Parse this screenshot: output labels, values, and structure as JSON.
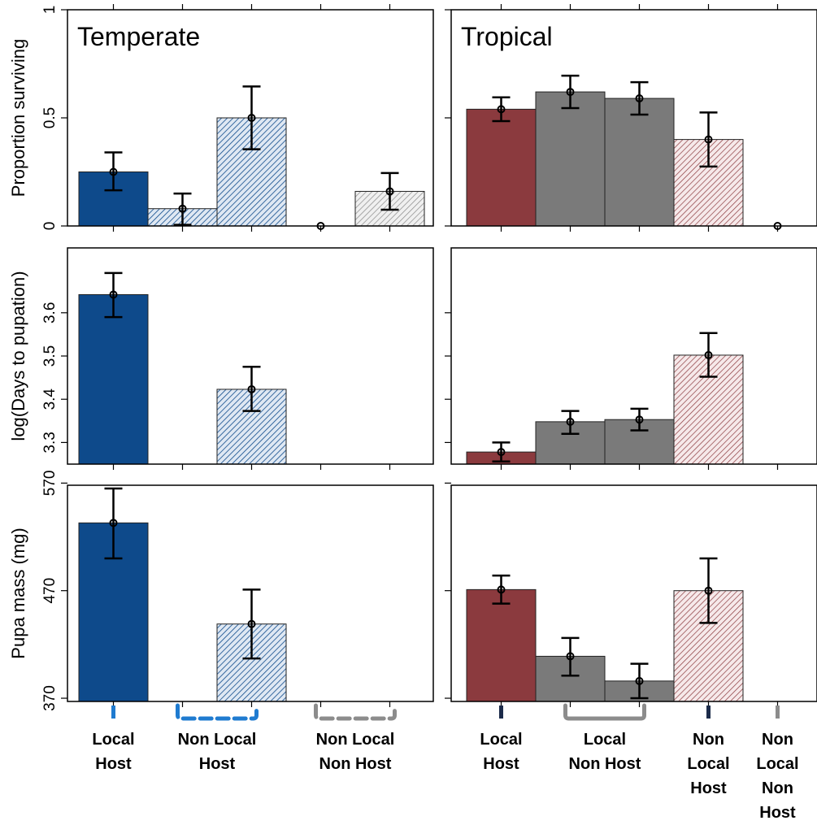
{
  "chart_data": [
    {
      "panel": "temperate-survival",
      "type": "bar",
      "title": "Temperate",
      "ylabel": "Proportion surviving",
      "ylim": [
        0,
        1
      ],
      "yticks": [
        "0",
        "0.5",
        "1"
      ],
      "x": [
        1,
        2,
        3,
        4,
        5
      ],
      "values": [
        0.25,
        0.08,
        0.5,
        0.0,
        0.16
      ],
      "ci_low": [
        0.165,
        0.005,
        0.355,
        0.0,
        0.075
      ],
      "ci_high": [
        0.34,
        0.15,
        0.645,
        0.0,
        0.245
      ],
      "fills": [
        "solid",
        "hatched",
        "hatched",
        "none",
        "hatched"
      ],
      "colors": [
        "#0e4a8b",
        "#0e4a8b",
        "#0e4a8b",
        "#888888",
        "#888888"
      ]
    },
    {
      "panel": "tropical-survival",
      "type": "bar",
      "title": "Tropical",
      "ylabel": "",
      "ylim": [
        0,
        1
      ],
      "x": [
        1,
        2,
        3,
        4,
        5
      ],
      "values": [
        0.54,
        0.62,
        0.59,
        0.4,
        0.0
      ],
      "ci_low": [
        0.485,
        0.545,
        0.515,
        0.275,
        0.0
      ],
      "ci_high": [
        0.595,
        0.695,
        0.665,
        0.525,
        0.0
      ],
      "fills": [
        "solid",
        "solid",
        "solid",
        "hatched",
        "none"
      ],
      "colors": [
        "#8b3a3e",
        "#7a7a7a",
        "#7a7a7a",
        "#8b3a3e",
        "#888888"
      ]
    },
    {
      "panel": "temperate-days",
      "type": "bar",
      "title": "",
      "ylabel": "log(Days to pupation)",
      "ylim": [
        3.25,
        3.75
      ],
      "yticks": [
        "3.3",
        "3.4",
        "3.5",
        "3.6"
      ],
      "x": [
        1,
        3
      ],
      "values": [
        3.642,
        3.423
      ],
      "ci_low": [
        3.59,
        3.373
      ],
      "ci_high": [
        3.692,
        3.475
      ],
      "fills": [
        "solid",
        "hatched"
      ],
      "colors": [
        "#0e4a8b",
        "#0e4a8b"
      ]
    },
    {
      "panel": "tropical-days",
      "type": "bar",
      "title": "",
      "ylabel": "",
      "ylim": [
        3.25,
        3.75
      ],
      "x": [
        1,
        2,
        3,
        4
      ],
      "values": [
        3.278,
        3.348,
        3.353,
        3.502
      ],
      "ci_low": [
        3.256,
        3.32,
        3.328,
        3.452
      ],
      "ci_high": [
        3.3,
        3.373,
        3.378,
        3.553
      ],
      "fills": [
        "solid",
        "solid",
        "solid",
        "hatched"
      ],
      "colors": [
        "#8b3a3e",
        "#7a7a7a",
        "#7a7a7a",
        "#8b3a3e"
      ]
    },
    {
      "panel": "temperate-mass",
      "type": "bar",
      "title": "",
      "ylabel": "Pupa mass (mg)",
      "ylim": [
        367,
        568
      ],
      "yticks": [
        "370",
        "470",
        "570"
      ],
      "x": [
        1,
        3
      ],
      "values": [
        533,
        439
      ],
      "ci_low": [
        500,
        407
      ],
      "ci_high": [
        565,
        471
      ],
      "fills": [
        "solid",
        "hatched"
      ],
      "colors": [
        "#0e4a8b",
        "#0e4a8b"
      ]
    },
    {
      "panel": "tropical-mass",
      "type": "bar",
      "title": "",
      "ylabel": "",
      "ylim": [
        367,
        568
      ],
      "x": [
        1,
        2,
        3,
        4
      ],
      "values": [
        471,
        409,
        386,
        470
      ],
      "ci_low": [
        458,
        391,
        370,
        440
      ],
      "ci_high": [
        484,
        426,
        402,
        500
      ],
      "fills": [
        "solid",
        "solid",
        "solid",
        "hatched"
      ],
      "colors": [
        "#8b3a3e",
        "#7a7a7a",
        "#7a7a7a",
        "#8b3a3e"
      ]
    }
  ],
  "group_labels": {
    "temperate": [
      {
        "text": "Local\nHost",
        "color": "#1f7bd0",
        "style": "solid-tick",
        "slots": [
          1
        ]
      },
      {
        "text": "Non Local\nHost",
        "color": "#1f7bd0",
        "style": "dashed-bracket",
        "slots": [
          2,
          3
        ]
      },
      {
        "text": "Non Local\nNon Host",
        "color": "#8c8c8c",
        "style": "dashed-bracket",
        "slots": [
          4,
          5
        ]
      }
    ],
    "tropical": [
      {
        "text": "Local\nHost",
        "color": "#1c2b4a",
        "style": "solid-tick",
        "slots": [
          1
        ]
      },
      {
        "text": "Local\nNon Host",
        "color": "#8c8c8c",
        "style": "solid-bracket",
        "slots": [
          2,
          3
        ]
      },
      {
        "text": "Non\nLocal\nHost",
        "color": "#1c2b4a",
        "style": "solid-tick",
        "slots": [
          4
        ]
      },
      {
        "text": "Non\nLocal\nNon\nHost",
        "color": "#8c8c8c",
        "style": "solid-tick",
        "slots": [
          5
        ]
      }
    ]
  }
}
